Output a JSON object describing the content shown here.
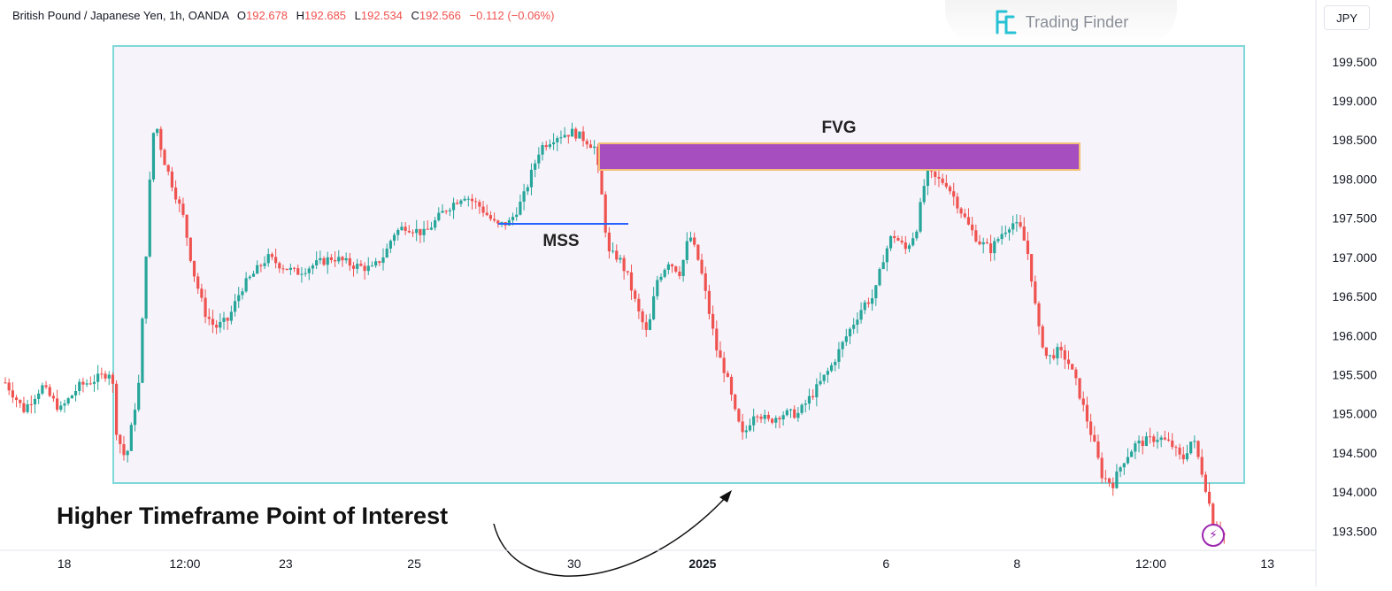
{
  "header": {
    "symbol": "British Pound / Japanese Yen, 1h, OANDA",
    "o_label": "O",
    "o_value": "192.678",
    "h_label": "H",
    "h_value": "192.685",
    "l_label": "L",
    "l_value": "192.534",
    "c_label": "C",
    "c_value": "192.566",
    "change": "−0.112 (−0.06%)"
  },
  "watermark": {
    "text": "Trading Finder",
    "icon": "trading-finder-logo-icon"
  },
  "currency_button": "JPY",
  "flash_icon": "lightning-icon",
  "annotations": {
    "fvg": "FVG",
    "mss": "MSS",
    "poi": "Higher Timeframe Point of Interest"
  },
  "colors": {
    "up": "#26a69a",
    "down": "#ef5350",
    "poi_border": "#7fd8d8",
    "poi_fill": "#f7f3fb",
    "fvg_fill": "#a64dbf",
    "fvg_border": "#f2c078",
    "mss_line": "#2962ff",
    "accent": "#9c27b0"
  },
  "chart_data": {
    "type": "candlestick",
    "instrument": "GBP/JPY",
    "timeframe": "1h",
    "yaxis": {
      "ticks": [
        {
          "value": 199.5,
          "label": "199.500"
        },
        {
          "value": 199.0,
          "label": "199.000"
        },
        {
          "value": 198.5,
          "label": "198.500"
        },
        {
          "value": 198.0,
          "label": "198.000"
        },
        {
          "value": 197.5,
          "label": "197.500"
        },
        {
          "value": 197.0,
          "label": "197.000"
        },
        {
          "value": 196.5,
          "label": "196.500"
        },
        {
          "value": 196.0,
          "label": "196.000"
        },
        {
          "value": 195.5,
          "label": "195.500"
        },
        {
          "value": 195.0,
          "label": "195.000"
        },
        {
          "value": 194.5,
          "label": "194.500"
        },
        {
          "value": 194.0,
          "label": "194.000"
        },
        {
          "value": 193.5,
          "label": "193.500"
        }
      ],
      "range": [
        193.3,
        199.95
      ]
    },
    "xaxis": {
      "ticks": [
        {
          "label": "18",
          "pos": 0.045,
          "bold": false
        },
        {
          "label": "12:00",
          "pos": 0.137,
          "bold": false
        },
        {
          "label": "23",
          "pos": 0.214,
          "bold": false
        },
        {
          "label": "25",
          "pos": 0.312,
          "bold": false
        },
        {
          "label": "30",
          "pos": 0.434,
          "bold": false
        },
        {
          "label": "2025",
          "pos": 0.532,
          "bold": true
        },
        {
          "label": "6",
          "pos": 0.672,
          "bold": false
        },
        {
          "label": "8",
          "pos": 0.772,
          "bold": false
        },
        {
          "label": "12:00",
          "pos": 0.874,
          "bold": false
        },
        {
          "label": "13",
          "pos": 0.963,
          "bold": false
        }
      ]
    },
    "price_path": [
      [
        0.0,
        195.4
      ],
      [
        0.014,
        195.05
      ],
      [
        0.028,
        195.35
      ],
      [
        0.042,
        195.05
      ],
      [
        0.056,
        195.35
      ],
      [
        0.07,
        195.45
      ],
      [
        0.081,
        195.55
      ],
      [
        0.085,
        194.75
      ],
      [
        0.092,
        194.4
      ],
      [
        0.102,
        195.4
      ],
      [
        0.106,
        196.6
      ],
      [
        0.11,
        197.9
      ],
      [
        0.114,
        198.8
      ],
      [
        0.12,
        198.3
      ],
      [
        0.128,
        197.9
      ],
      [
        0.136,
        197.5
      ],
      [
        0.143,
        196.85
      ],
      [
        0.152,
        196.3
      ],
      [
        0.16,
        196.1
      ],
      [
        0.17,
        196.2
      ],
      [
        0.18,
        196.6
      ],
      [
        0.19,
        196.8
      ],
      [
        0.2,
        197.0
      ],
      [
        0.21,
        196.9
      ],
      [
        0.222,
        196.8
      ],
      [
        0.235,
        196.9
      ],
      [
        0.25,
        197.0
      ],
      [
        0.265,
        196.9
      ],
      [
        0.28,
        196.85
      ],
      [
        0.29,
        197.05
      ],
      [
        0.296,
        197.3
      ],
      [
        0.305,
        197.4
      ],
      [
        0.32,
        197.3
      ],
      [
        0.335,
        197.6
      ],
      [
        0.35,
        197.8
      ],
      [
        0.362,
        197.65
      ],
      [
        0.375,
        197.4
      ],
      [
        0.385,
        197.45
      ],
      [
        0.395,
        197.75
      ],
      [
        0.408,
        198.4
      ],
      [
        0.42,
        198.55
      ],
      [
        0.433,
        198.6
      ],
      [
        0.443,
        198.5
      ],
      [
        0.45,
        198.4
      ],
      [
        0.455,
        197.8
      ],
      [
        0.46,
        197.05
      ],
      [
        0.468,
        197.0
      ],
      [
        0.475,
        196.75
      ],
      [
        0.483,
        196.3
      ],
      [
        0.49,
        196.0
      ],
      [
        0.497,
        196.7
      ],
      [
        0.506,
        196.95
      ],
      [
        0.515,
        196.8
      ],
      [
        0.522,
        197.3
      ],
      [
        0.53,
        196.9
      ],
      [
        0.537,
        196.3
      ],
      [
        0.543,
        195.8
      ],
      [
        0.55,
        195.5
      ],
      [
        0.557,
        195.0
      ],
      [
        0.563,
        194.7
      ],
      [
        0.572,
        195.05
      ],
      [
        0.582,
        194.9
      ],
      [
        0.592,
        195.0
      ],
      [
        0.605,
        195.0
      ],
      [
        0.618,
        195.3
      ],
      [
        0.63,
        195.6
      ],
      [
        0.642,
        196.0
      ],
      [
        0.655,
        196.4
      ],
      [
        0.663,
        196.5
      ],
      [
        0.67,
        197.0
      ],
      [
        0.677,
        197.3
      ],
      [
        0.687,
        197.1
      ],
      [
        0.695,
        197.35
      ],
      [
        0.703,
        198.1
      ],
      [
        0.71,
        198.0
      ],
      [
        0.718,
        197.95
      ],
      [
        0.726,
        197.7
      ],
      [
        0.735,
        197.4
      ],
      [
        0.743,
        197.2
      ],
      [
        0.752,
        197.1
      ],
      [
        0.76,
        197.3
      ],
      [
        0.768,
        197.45
      ],
      [
        0.775,
        197.35
      ],
      [
        0.781,
        197.0
      ],
      [
        0.788,
        196.1
      ],
      [
        0.795,
        195.7
      ],
      [
        0.803,
        195.8
      ],
      [
        0.81,
        195.7
      ],
      [
        0.817,
        195.4
      ],
      [
        0.824,
        195.0
      ],
      [
        0.831,
        194.6
      ],
      [
        0.837,
        194.2
      ],
      [
        0.845,
        194.1
      ],
      [
        0.853,
        194.4
      ],
      [
        0.862,
        194.6
      ],
      [
        0.87,
        194.65
      ],
      [
        0.88,
        194.7
      ],
      [
        0.89,
        194.6
      ],
      [
        0.898,
        194.4
      ],
      [
        0.906,
        194.7
      ],
      [
        0.914,
        194.2
      ],
      [
        0.922,
        193.6
      ],
      [
        0.93,
        193.45
      ]
    ]
  }
}
